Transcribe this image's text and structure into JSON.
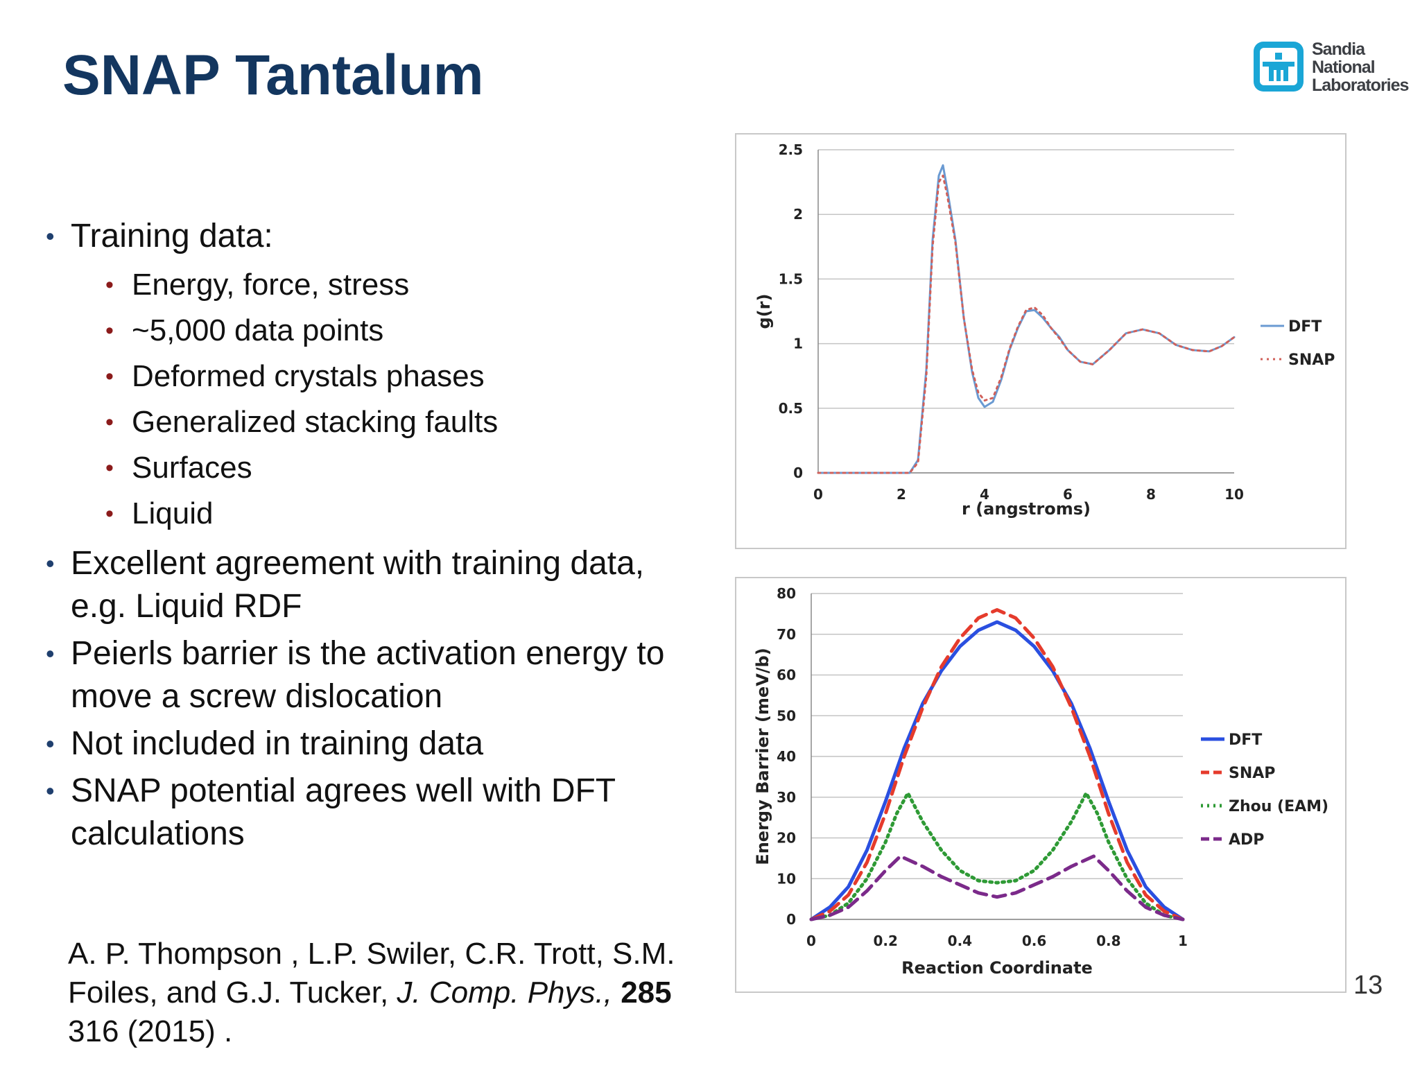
{
  "slide": {
    "title": "SNAP Tantalum",
    "page_number": "13",
    "logo_lines": [
      "Sandia",
      "National",
      "Laboratories"
    ]
  },
  "bullets": [
    {
      "text": "Training data:",
      "sub": [
        "Energy, force, stress",
        "~5,000 data points",
        "Deformed crystals phases",
        "Generalized stacking faults",
        "Surfaces",
        "Liquid"
      ]
    },
    {
      "text": "Excellent agreement with training data, e.g. Liquid RDF",
      "sub": []
    },
    {
      "text": "Peierls barrier is the activation energy to move a screw dislocation",
      "sub": []
    },
    {
      "text": "Not included in training data",
      "sub": []
    },
    {
      "text": "SNAP potential agrees well with DFT calculations",
      "sub": []
    }
  ],
  "reference": {
    "authors": "A. P. Thompson , L.P. Swiler, C.R. Trott, S.M. Foiles, and G.J. Tucker, ",
    "journal": "J. Comp. Phys.,",
    "volume": "285",
    "rest": " 316 (2015) ."
  },
  "chart_data": [
    {
      "type": "line",
      "xlabel": "r (angstroms)",
      "ylabel": "g(r)",
      "xlim": [
        0,
        10
      ],
      "ylim": [
        0,
        2.5
      ],
      "xticks": [
        "0",
        "2",
        "4",
        "6",
        "8",
        "10"
      ],
      "yticks": [
        "0",
        "0.5",
        "1",
        "1.5",
        "2",
        "2.5"
      ],
      "grid": "horizontal",
      "legend": "right",
      "series": [
        {
          "name": "DFT",
          "color": "#6a9ad2",
          "style": "solid",
          "x": [
            0,
            2.2,
            2.4,
            2.6,
            2.75,
            2.9,
            3.0,
            3.1,
            3.3,
            3.5,
            3.7,
            3.85,
            4.0,
            4.2,
            4.4,
            4.6,
            4.8,
            5.0,
            5.2,
            5.4,
            5.6,
            5.8,
            6.0,
            6.3,
            6.6,
            7.0,
            7.4,
            7.8,
            8.2,
            8.6,
            9.0,
            9.4,
            9.7,
            10.0
          ],
          "y": [
            0,
            0,
            0.1,
            0.8,
            1.8,
            2.3,
            2.38,
            2.2,
            1.8,
            1.2,
            0.78,
            0.58,
            0.51,
            0.55,
            0.72,
            0.95,
            1.12,
            1.25,
            1.26,
            1.2,
            1.12,
            1.05,
            0.95,
            0.86,
            0.84,
            0.95,
            1.08,
            1.11,
            1.08,
            0.99,
            0.95,
            0.94,
            0.98,
            1.05
          ]
        },
        {
          "name": "SNAP",
          "color": "#d0605a",
          "style": "dotted",
          "x": [
            0,
            2.2,
            2.4,
            2.6,
            2.75,
            2.9,
            3.0,
            3.1,
            3.3,
            3.5,
            3.7,
            3.85,
            4.0,
            4.2,
            4.4,
            4.6,
            4.8,
            5.0,
            5.2,
            5.4,
            5.6,
            5.8,
            6.0,
            6.3,
            6.6,
            7.0,
            7.4,
            7.8,
            8.2,
            8.6,
            9.0,
            9.4,
            9.7,
            10.0
          ],
          "y": [
            0,
            0,
            0.08,
            0.75,
            1.75,
            2.25,
            2.3,
            2.15,
            1.78,
            1.2,
            0.8,
            0.62,
            0.56,
            0.58,
            0.74,
            0.96,
            1.13,
            1.26,
            1.28,
            1.22,
            1.12,
            1.04,
            0.95,
            0.86,
            0.84,
            0.95,
            1.08,
            1.11,
            1.08,
            0.99,
            0.95,
            0.94,
            0.98,
            1.05
          ]
        }
      ]
    },
    {
      "type": "line",
      "xlabel": "Reaction Coordinate",
      "ylabel": "Energy Barrier (meV/b)",
      "xlim": [
        0,
        1
      ],
      "ylim": [
        0,
        80
      ],
      "xticks": [
        "0",
        "0.2",
        "0.4",
        "0.6",
        "0.8",
        "1"
      ],
      "yticks": [
        "0",
        "10",
        "20",
        "30",
        "40",
        "50",
        "60",
        "70",
        "80"
      ],
      "grid": "horizontal",
      "legend": "right",
      "series": [
        {
          "name": "DFT",
          "color": "#2a4fe0",
          "style": "solid",
          "x": [
            0,
            0.05,
            0.1,
            0.15,
            0.2,
            0.25,
            0.3,
            0.35,
            0.4,
            0.45,
            0.5,
            0.55,
            0.6,
            0.65,
            0.7,
            0.75,
            0.8,
            0.85,
            0.9,
            0.95,
            1.0
          ],
          "y": [
            0,
            3,
            8,
            17,
            29,
            42,
            53,
            61,
            67,
            71,
            73,
            71,
            67,
            61,
            53,
            42,
            29,
            17,
            8,
            3,
            0
          ]
        },
        {
          "name": "SNAP",
          "color": "#e53b2c",
          "style": "dashed",
          "x": [
            0,
            0.05,
            0.1,
            0.15,
            0.2,
            0.25,
            0.3,
            0.35,
            0.4,
            0.45,
            0.5,
            0.55,
            0.6,
            0.65,
            0.7,
            0.75,
            0.8,
            0.85,
            0.9,
            0.95,
            1.0
          ],
          "y": [
            0,
            2,
            6,
            14,
            26,
            40,
            52,
            62,
            69,
            74,
            76,
            74,
            69,
            62,
            52,
            40,
            26,
            14,
            6,
            2,
            0
          ]
        },
        {
          "name": "Zhou (EAM)",
          "color": "#2e9a35",
          "style": "dotted",
          "x": [
            0,
            0.05,
            0.1,
            0.15,
            0.2,
            0.23,
            0.26,
            0.3,
            0.35,
            0.4,
            0.45,
            0.5,
            0.55,
            0.6,
            0.65,
            0.7,
            0.74,
            0.77,
            0.8,
            0.85,
            0.9,
            0.95,
            1.0
          ],
          "y": [
            0,
            1,
            4,
            10,
            19,
            26,
            31,
            24,
            17,
            12,
            9.5,
            9,
            9.5,
            12,
            17,
            24,
            31,
            26,
            19,
            10,
            4,
            1,
            0
          ]
        },
        {
          "name": "ADP",
          "color": "#7b2a8a",
          "style": "dashed",
          "x": [
            0,
            0.05,
            0.1,
            0.15,
            0.2,
            0.24,
            0.3,
            0.35,
            0.4,
            0.45,
            0.5,
            0.55,
            0.6,
            0.65,
            0.7,
            0.76,
            0.8,
            0.85,
            0.9,
            0.95,
            1.0
          ],
          "y": [
            0,
            1,
            3,
            7,
            12,
            15.5,
            13,
            10.5,
            8.5,
            6.5,
            5.5,
            6.5,
            8.5,
            10.5,
            13,
            15.5,
            12,
            7,
            3,
            1,
            0
          ]
        }
      ]
    }
  ]
}
